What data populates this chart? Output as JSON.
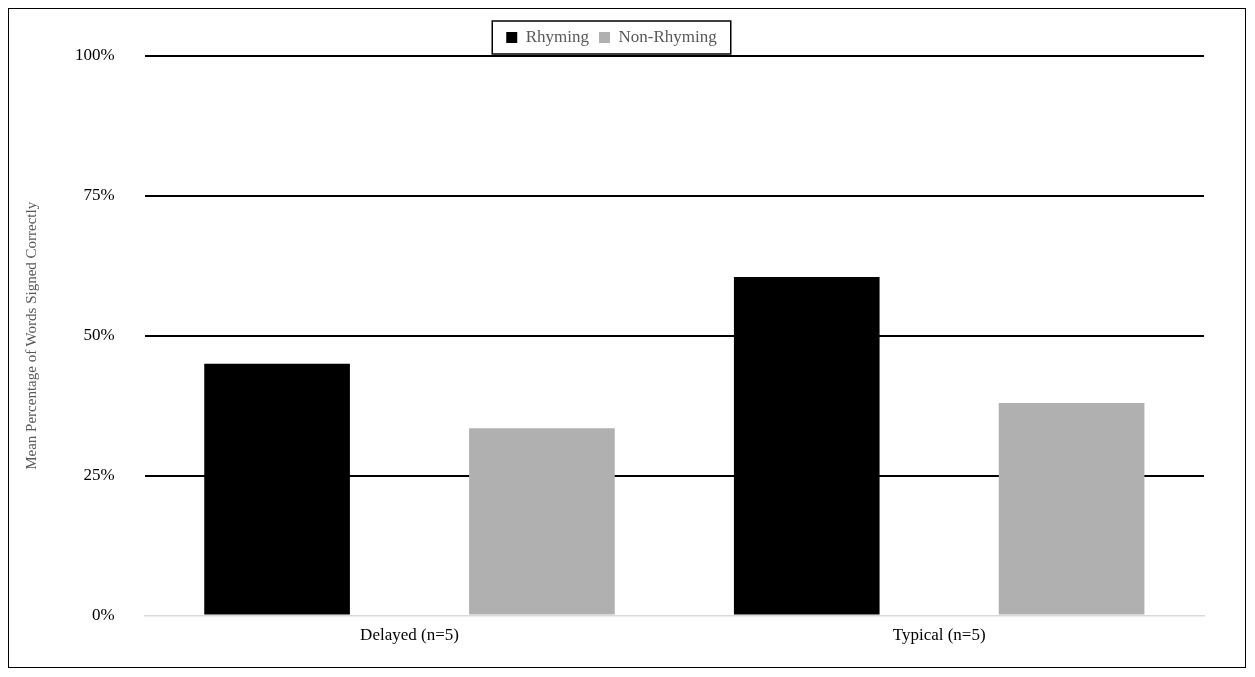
{
  "chart_data": {
    "type": "bar",
    "ylabel": "Mean Percentage of Words Signed Correctly",
    "categories": [
      "Delayed (n=5)",
      "Typical (n=5)"
    ],
    "series": [
      {
        "name": "Rhyming",
        "color": "#000000",
        "values": [
          45,
          60.5
        ]
      },
      {
        "name": "Non-Rhyming",
        "color": "#b0b0b0",
        "values": [
          33.5,
          38
        ]
      }
    ],
    "ylim": [
      0,
      100
    ],
    "yticks": [
      {
        "value": 0,
        "label": "0%"
      },
      {
        "value": 25,
        "label": "25%"
      },
      {
        "value": 50,
        "label": "50%"
      },
      {
        "value": 75,
        "label": "75%"
      },
      {
        "value": 100,
        "label": "100%"
      }
    ],
    "grid": "y",
    "legend": "top"
  }
}
